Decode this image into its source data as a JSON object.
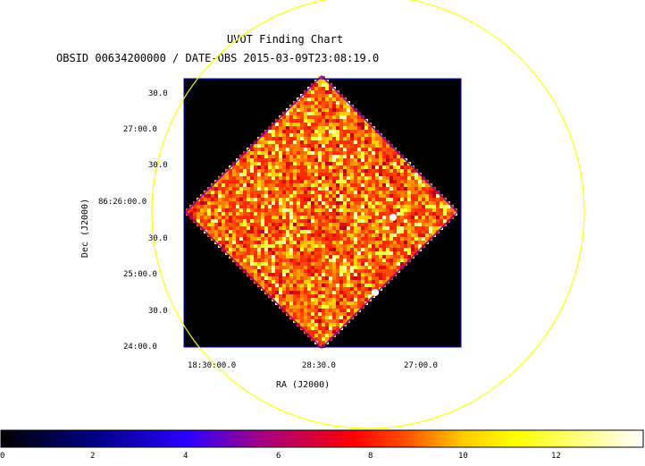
{
  "title": "UVOT Finding Chart",
  "subtitle": "OBSID 00634200000 / DATE-OBS 2015-03-09T23:08:19.0",
  "axes": {
    "xlabel": "RA (J2000)",
    "ylabel": "Dec (J2000)",
    "x_ticks": [
      "18:30:00.0",
      "28:30.0",
      "27:00.0"
    ],
    "y_ticks": [
      "30.0",
      "27:00.0",
      "30.0",
      "86:26:00.0",
      "30.0",
      "25:00.0",
      "30.0",
      "24:00.0"
    ]
  },
  "colorbar": {
    "ticks": [
      "0",
      "2",
      "4",
      "6",
      "8",
      "10",
      "12"
    ],
    "range": [
      0,
      13.8
    ],
    "colors": [
      "#000000",
      "#0000ff",
      "#ff0000",
      "#ffff00",
      "#ffffff"
    ]
  },
  "overlay": {
    "shape": "circle",
    "color": "#ffff00"
  },
  "image": {
    "background": "#000000",
    "frame_color": "#0000cc",
    "colormap": "heat"
  }
}
